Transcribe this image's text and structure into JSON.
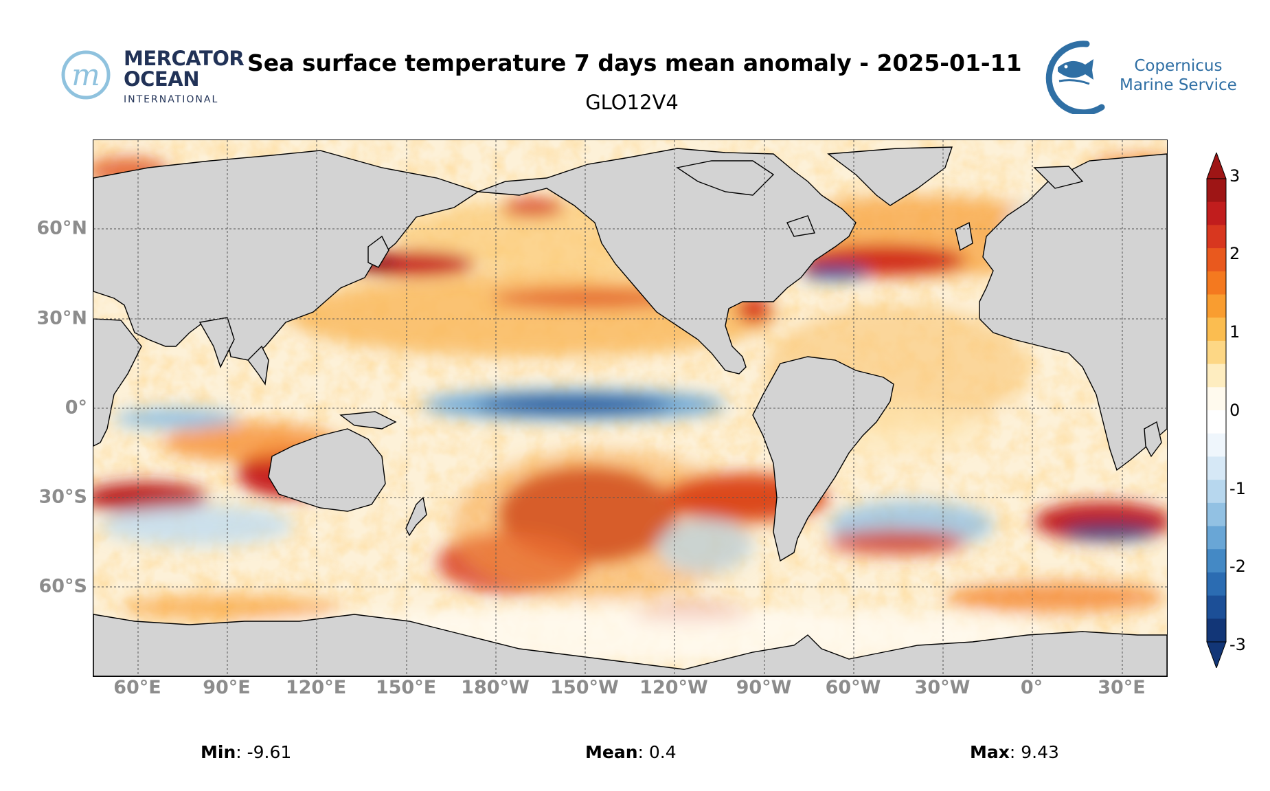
{
  "header": {
    "title": "Sea surface temperature 7 days mean anomaly - 2025-01-11",
    "subtitle": "GLO12V4",
    "logo_left": {
      "line1": "MERCATOR",
      "line2": "OCEAN",
      "line3": "INTERNATIONAL",
      "monogram": "m"
    },
    "logo_right": {
      "line1": "Copernicus",
      "line2": "Marine Service",
      "icon": "fish-icon"
    }
  },
  "map": {
    "lat_labels": [
      "60°N",
      "30°N",
      "0°",
      "30°S",
      "60°S"
    ],
    "lon_labels": [
      "60°E",
      "90°E",
      "120°E",
      "150°E",
      "180°W",
      "150°W",
      "120°W",
      "90°W",
      "60°W",
      "30°W",
      "0°",
      "30°E"
    ],
    "land_color": "#d3d3d3",
    "grid_style": "dashed"
  },
  "colorbar": {
    "ticks": [
      "3",
      "2",
      "1",
      "0",
      "-1",
      "-2",
      "-3"
    ],
    "range": [
      -3,
      3
    ],
    "colors": [
      "#9e1515",
      "#c11d1d",
      "#d8371f",
      "#e9591e",
      "#f4791f",
      "#f99d30",
      "#fbbd50",
      "#fdd785",
      "#feedc0",
      "#fffaee",
      "#ffffff",
      "#eff6fc",
      "#d6e8f6",
      "#b7d7ee",
      "#92c1e3",
      "#69a6d6",
      "#4489c5",
      "#2b6cb2",
      "#1c4f97",
      "#123677"
    ]
  },
  "stats": {
    "min_label": "Min",
    "min_value": "-9.61",
    "mean_label": "Mean",
    "mean_value": "0.4",
    "max_label": "Max",
    "max_value": "9.43"
  }
}
